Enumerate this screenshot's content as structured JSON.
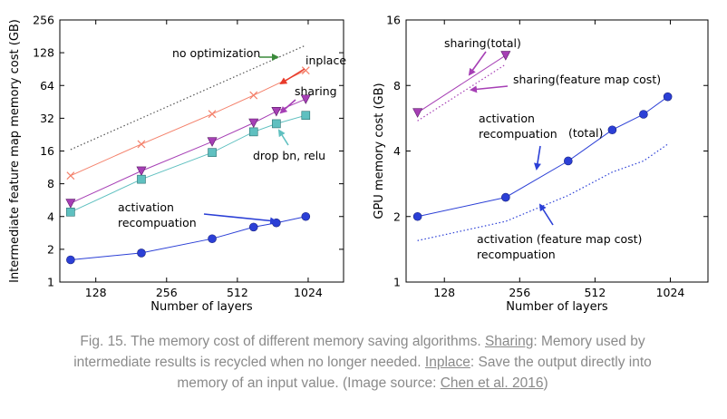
{
  "chart_data": [
    {
      "type": "line",
      "xscale": "log2",
      "yscale": "log2",
      "xlabel": "Number of layers",
      "ylabel": "Intermediate feature map memory cost (GB)",
      "xticks": [
        128,
        256,
        512,
        1024
      ],
      "yticks": [
        1,
        2,
        4,
        8,
        16,
        32,
        64,
        128,
        256
      ],
      "xlim": [
        90,
        1448
      ],
      "ylim": [
        1,
        256
      ],
      "grid": false,
      "series": [
        {
          "name": "no optimization",
          "style": "dotted",
          "color": "#555555",
          "marker": "none",
          "x": [
            100,
            1000
          ],
          "y": [
            16.5,
            150
          ]
        },
        {
          "name": "inplace",
          "style": "solid",
          "color": "#f4806a",
          "marker": "x",
          "x": [
            100,
            200,
            400,
            600,
            1000
          ],
          "y": [
            9.5,
            18.5,
            35,
            52,
            88
          ]
        },
        {
          "name": "sharing",
          "style": "solid",
          "color": "#a63fb5",
          "marker": "triangle-down",
          "x": [
            100,
            200,
            400,
            600,
            750,
            1000
          ],
          "y": [
            5.3,
            10.5,
            19.5,
            29,
            37,
            48
          ]
        },
        {
          "name": "drop bn, relu",
          "style": "solid",
          "color": "#5fc0c0",
          "marker": "square",
          "x": [
            100,
            200,
            400,
            600,
            750,
            1000
          ],
          "y": [
            4.4,
            8.8,
            15.5,
            24,
            28.5,
            34
          ]
        },
        {
          "name": "activation recompuation",
          "style": "solid",
          "color": "#2b3fd6",
          "marker": "circle",
          "x": [
            100,
            200,
            400,
            600,
            750,
            1000
          ],
          "y": [
            1.6,
            1.85,
            2.5,
            3.2,
            3.5,
            4
          ]
        }
      ],
      "annotations": [
        {
          "text": "no optimization",
          "arrow_color": "#3a8a3a"
        },
        {
          "text": "inplace",
          "arrow_color": "#e83a2a"
        },
        {
          "text": "sharing",
          "arrow_color": "#a63fb5"
        },
        {
          "text": "drop bn, relu",
          "arrow_color": "#5fc0c0"
        },
        {
          "text": "activation\nrecompuation",
          "arrow_color": "#2b3fd6"
        }
      ]
    },
    {
      "type": "line",
      "xscale": "log2",
      "yscale": "log2",
      "xlabel": "Number of layers",
      "ylabel": "GPU memory cost (GB)",
      "xticks": [
        128,
        256,
        512,
        1024
      ],
      "yticks": [
        1,
        2,
        4,
        8,
        16
      ],
      "xlim": [
        90,
        1448
      ],
      "ylim": [
        1,
        16
      ],
      "grid": false,
      "series": [
        {
          "name": "sharing(total)",
          "style": "solid",
          "color": "#a63fb5",
          "marker": "triangle-down",
          "x": [
            100,
            225
          ],
          "y": [
            6.0,
            11.0
          ]
        },
        {
          "name": "sharing(feature map cost)",
          "style": "dotted",
          "color": "#a63fb5",
          "marker": "none",
          "x": [
            100,
            225
          ],
          "y": [
            5.5,
            10.0
          ]
        },
        {
          "name": "activation recompuation (total)",
          "style": "solid",
          "color": "#2b3fd6",
          "marker": "circle",
          "x": [
            100,
            225,
            400,
            600,
            800,
            1000
          ],
          "y": [
            2.0,
            2.45,
            3.6,
            5.0,
            5.9,
            7.1
          ]
        },
        {
          "name": "activation recompuation (feature map cost)",
          "style": "dotted",
          "color": "#2b3fd6",
          "marker": "none",
          "x": [
            100,
            225,
            400,
            600,
            800,
            1000
          ],
          "y": [
            1.55,
            1.9,
            2.5,
            3.2,
            3.6,
            4.3
          ]
        }
      ],
      "annotations": [
        {
          "text": "sharing(total)",
          "arrow_color": "#a63fb5"
        },
        {
          "text": "sharing(feature map cost)",
          "arrow_color": "#a63fb5"
        },
        {
          "text": "activation\nrecompuation",
          "arrow_color": "#2b3fd6"
        },
        {
          "text": "(total)",
          "arrow_color": "#2b3fd6"
        },
        {
          "text": "activation (feature map cost)\nrecompuation",
          "arrow_color": "#2b3fd6"
        }
      ]
    }
  ],
  "caption": {
    "prefix": "Fig. 15. The memory cost of different memory saving algorithms. ",
    "sharing_link": "Sharing",
    "sharing_text": ": Memory used by intermediate results is recycled when no longer needed. ",
    "inplace_link": "Inplace",
    "inplace_text": ": Save the output directly into memory of an input value. (Image source: ",
    "source_link": "Chen et al. 2016",
    "suffix": ")"
  }
}
